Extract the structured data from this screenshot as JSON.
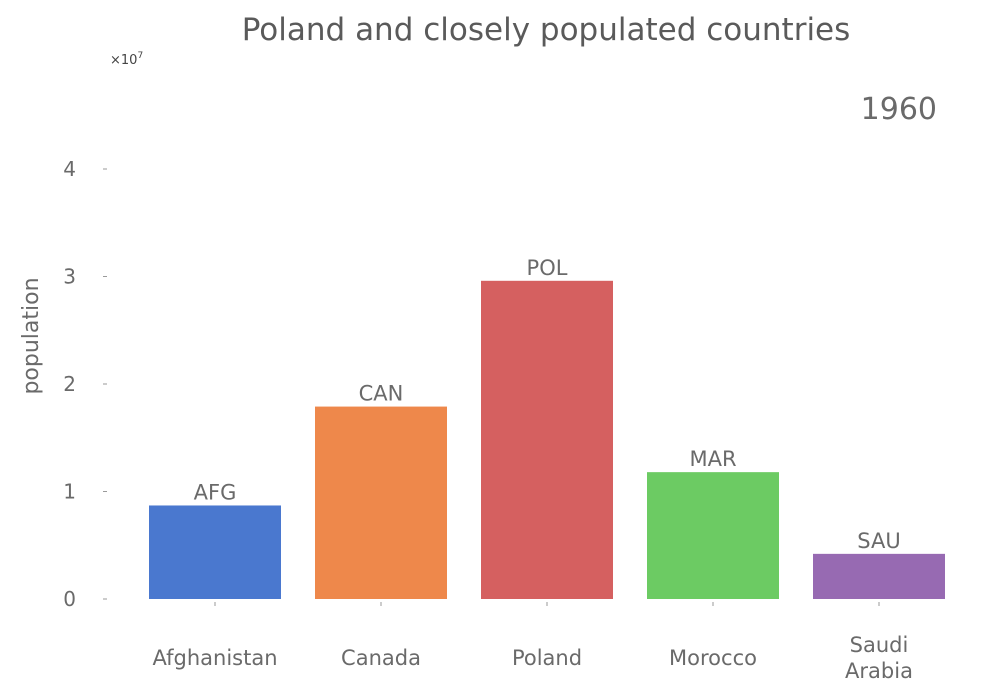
{
  "chart_data": {
    "type": "bar",
    "title": "Poland and closely populated countries",
    "year_label": "1960",
    "ylabel": "population",
    "xlabel": "",
    "y_multiplier_label": "×10",
    "y_multiplier_exponent": "7",
    "ylim": [
      0,
      4.3
    ],
    "y_ticks": [
      "0",
      "1",
      "2",
      "3",
      "4"
    ],
    "y_tick_values": [
      0,
      1,
      2,
      3,
      4
    ],
    "categories": [
      "Afghanistan",
      "Canada",
      "Poland",
      "Morocco",
      "Saudi Arabia"
    ],
    "codes": [
      "AFG",
      "CAN",
      "POL",
      "MAR",
      "SAU"
    ],
    "values": [
      0.87,
      1.79,
      2.96,
      1.18,
      0.42
    ],
    "colors": [
      "#4a78cf",
      "#ee884b",
      "#d56060",
      "#6ccb63",
      "#976ab2"
    ],
    "grid": false,
    "legend": "none"
  }
}
